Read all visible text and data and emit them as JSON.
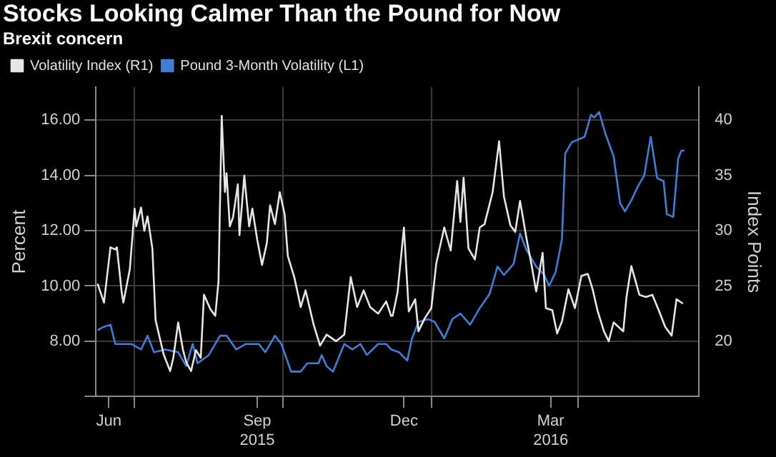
{
  "chart_data": {
    "type": "line",
    "title": "Stocks Looking Calmer Than the Pound for Now",
    "subtitle": "Brexit concern",
    "ylabel": "Percent",
    "y2label": "Index Points",
    "xlim": [
      "2015-06-07",
      "2016-06-15"
    ],
    "xticks": [
      {
        "value": "2015-06-15",
        "label": "Jun"
      },
      {
        "value": "2015-07-01",
        "label": null
      },
      {
        "value": "2015-09-15",
        "label": "Sep\n2015"
      },
      {
        "value": "2015-10-01",
        "label": null
      },
      {
        "value": "2015-12-15",
        "label": "Dec"
      },
      {
        "value": "2016-01-01",
        "label": null
      },
      {
        "value": "2016-03-15",
        "label": "Mar\n2016"
      },
      {
        "value": "2016-04-01",
        "label": null
      }
    ],
    "ylim": [
      6,
      17.2
    ],
    "yticks": [
      {
        "value": 6,
        "label": null
      },
      {
        "value": 8,
        "label": "8.00"
      },
      {
        "value": 10,
        "label": "10.00"
      },
      {
        "value": 12,
        "label": "12.00"
      },
      {
        "value": 14,
        "label": "14.00"
      },
      {
        "value": 16,
        "label": "16.00"
      }
    ],
    "y2lim": [
      15,
      43
    ],
    "y2ticks": [
      20,
      25,
      30,
      35,
      40
    ],
    "grid": true,
    "legend": "top left",
    "marker": "none",
    "line_style": "solid",
    "series": [
      {
        "name": "Volatility Index (R1)",
        "color": "#e6e6e6",
        "axis": "y2",
        "x": [
          "2015-06-08",
          "2015-06-12",
          "2015-06-16",
          "2015-06-19",
          "2015-06-20",
          "2015-06-23",
          "2015-06-24",
          "2015-06-28",
          "2015-07-01",
          "2015-07-02",
          "2015-07-05",
          "2015-07-07",
          "2015-07-09",
          "2015-07-12",
          "2015-07-14",
          "2015-07-19",
          "2015-07-23",
          "2015-07-25",
          "2015-07-28",
          "2015-07-31",
          "2015-08-02",
          "2015-08-05",
          "2015-08-08",
          "2015-08-11",
          "2015-08-13",
          "2015-08-17",
          "2015-08-20",
          "2015-08-22",
          "2015-08-24",
          "2015-08-26",
          "2015-08-27",
          "2015-08-29",
          "2015-08-31",
          "2015-09-03",
          "2015-09-04",
          "2015-09-07",
          "2015-09-10",
          "2015-09-12",
          "2015-09-15",
          "2015-09-18",
          "2015-09-21",
          "2015-09-23",
          "2015-09-26",
          "2015-09-29",
          "2015-10-02",
          "2015-10-04",
          "2015-10-08",
          "2015-10-12",
          "2015-10-15",
          "2015-10-20",
          "2015-10-24",
          "2015-10-28",
          "2015-11-03",
          "2015-11-08",
          "2015-11-12",
          "2015-11-16",
          "2015-11-20",
          "2015-11-24",
          "2015-11-29",
          "2015-12-04",
          "2015-12-07",
          "2015-12-08",
          "2015-12-11",
          "2015-12-15",
          "2015-12-18",
          "2015-12-22",
          "2015-12-24",
          "2015-12-28",
          "2016-01-01",
          "2016-01-04",
          "2016-01-09",
          "2016-01-13",
          "2016-01-17",
          "2016-01-19",
          "2016-01-21",
          "2016-01-24",
          "2016-01-28",
          "2016-01-31",
          "2016-02-03",
          "2016-02-08",
          "2016-02-12",
          "2016-02-15",
          "2016-02-19",
          "2016-02-22",
          "2016-02-25",
          "2016-02-29",
          "2016-03-03",
          "2016-03-06",
          "2016-03-10",
          "2016-03-12",
          "2016-03-16",
          "2016-03-19",
          "2016-03-22",
          "2016-03-26",
          "2016-03-30",
          "2016-04-03",
          "2016-04-07",
          "2016-04-10",
          "2016-04-13",
          "2016-04-17",
          "2016-04-20",
          "2016-04-23",
          "2016-04-29",
          "2016-05-01",
          "2016-05-04",
          "2016-05-09",
          "2016-05-13",
          "2016-05-17",
          "2016-05-21",
          "2016-05-25",
          "2016-05-29",
          "2016-06-01",
          "2016-06-05"
        ],
        "values": [
          25.2,
          23.5,
          28.5,
          28.3,
          28.5,
          24.4,
          23.5,
          26.5,
          32,
          30.4,
          32.1,
          30,
          31.3,
          28.4,
          21.9,
          18.8,
          17.3,
          18.5,
          21.7,
          19.2,
          18.1,
          17.3,
          19.2,
          18.5,
          24.2,
          22.9,
          22.3,
          25.4,
          40.4,
          33.5,
          35.2,
          30.4,
          31.2,
          34.2,
          29.6,
          35,
          30.4,
          32,
          29.2,
          26.9,
          28.9,
          32.3,
          30.6,
          33.5,
          31.5,
          27.7,
          25.8,
          23.1,
          24.6,
          21.5,
          19.6,
          20.6,
          20,
          20.6,
          25.8,
          23.1,
          24.6,
          23.1,
          22.5,
          23.6,
          22.3,
          22.3,
          24.4,
          30.3,
          22.7,
          23.8,
          20.9,
          22.1,
          23,
          27,
          30.3,
          28.2,
          34.5,
          30.8,
          34.8,
          28.4,
          27.4,
          30.3,
          30.6,
          33.5,
          38.1,
          33.1,
          30.5,
          29.9,
          32.7,
          29.3,
          27,
          24.5,
          28,
          23,
          22.8,
          20.7,
          21.8,
          24.7,
          23,
          25.9,
          26.1,
          24.7,
          22.8,
          20.9,
          20,
          21.7,
          20.9,
          24,
          26.8,
          24.2,
          24,
          24.2,
          22.8,
          21.3,
          20.5,
          23.8,
          23.4
        ]
      },
      {
        "name": "Pound 3-Month Volatility (L1)",
        "color": "#3d7fd6",
        "x": [
          "2015-06-08",
          "2015-06-11",
          "2015-06-16",
          "2015-06-19",
          "2015-06-24",
          "2015-06-29",
          "2015-07-05",
          "2015-07-09",
          "2015-07-13",
          "2015-07-20",
          "2015-07-28",
          "2015-08-02",
          "2015-08-06",
          "2015-08-09",
          "2015-08-16",
          "2015-08-23",
          "2015-08-27",
          "2015-09-02",
          "2015-09-08",
          "2015-09-16",
          "2015-09-20",
          "2015-09-26",
          "2015-09-30",
          "2015-10-06",
          "2015-10-12",
          "2015-10-16",
          "2015-10-23",
          "2015-10-25",
          "2015-10-28",
          "2015-11-01",
          "2015-11-08",
          "2015-11-13",
          "2015-11-18",
          "2015-11-22",
          "2015-11-29",
          "2015-12-04",
          "2015-12-07",
          "2015-12-12",
          "2015-12-17",
          "2015-12-20",
          "2015-12-24",
          "2015-12-30",
          "2016-01-03",
          "2016-01-09",
          "2016-01-14",
          "2016-01-19",
          "2016-01-25",
          "2016-01-31",
          "2016-02-06",
          "2016-02-11",
          "2016-02-15",
          "2016-02-21",
          "2016-02-25",
          "2016-02-29",
          "2016-03-06",
          "2016-03-11",
          "2016-03-14",
          "2016-03-18",
          "2016-03-22",
          "2016-03-24",
          "2016-03-28",
          "2016-04-01",
          "2016-04-05",
          "2016-04-09",
          "2016-04-11",
          "2016-04-14",
          "2016-04-18",
          "2016-04-23",
          "2016-04-27",
          "2016-04-30",
          "2016-05-04",
          "2016-05-08",
          "2016-05-12",
          "2016-05-16",
          "2016-05-20",
          "2016-05-24",
          "2016-05-26",
          "2016-05-30",
          "2016-06-02",
          "2016-06-04",
          "2016-06-06"
        ],
        "values": [
          8.4,
          8.5,
          8.6,
          7.9,
          7.9,
          7.9,
          7.7,
          8.2,
          7.6,
          7.7,
          7.6,
          7.1,
          7.9,
          7.2,
          7.5,
          8.2,
          8.2,
          7.7,
          7.9,
          7.9,
          7.6,
          8.2,
          7.9,
          6.9,
          6.9,
          7.2,
          7.2,
          7.5,
          7.1,
          6.9,
          7.9,
          7.7,
          7.9,
          7.5,
          7.9,
          7.9,
          7.7,
          7.6,
          7.3,
          8.1,
          8.7,
          8.8,
          8.7,
          8.1,
          8.8,
          9,
          8.6,
          9.2,
          9.7,
          10.7,
          10.4,
          10.8,
          11.9,
          11.3,
          10.7,
          10.4,
          10,
          10.5,
          11.7,
          14.8,
          15.2,
          15.3,
          15.4,
          16.2,
          16.1,
          16.3,
          15.5,
          14.7,
          13,
          12.7,
          13.1,
          13.6,
          14,
          15.4,
          13.9,
          13.8,
          12.6,
          12.5,
          14.6,
          14.9,
          14.9
        ]
      }
    ]
  }
}
